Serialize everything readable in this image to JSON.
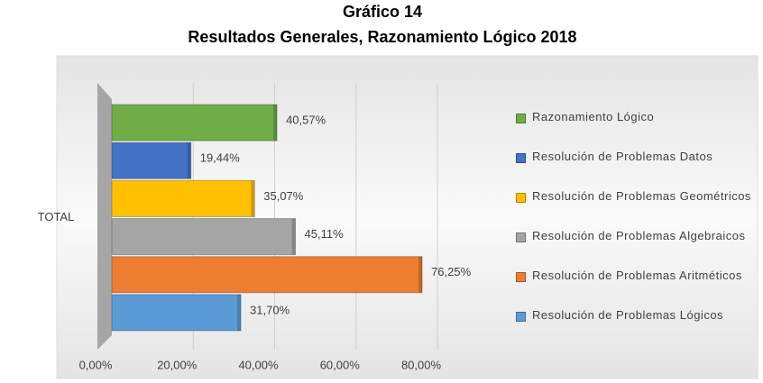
{
  "chart_data": {
    "type": "bar",
    "orientation": "horizontal",
    "title": "Gráfico 14",
    "subtitle": "Resultados Generales, Razonamiento Lógico 2018",
    "categories": [
      "TOTAL"
    ],
    "series": [
      {
        "name": "Razonamiento Lógico",
        "color": "#70ad47",
        "values": [
          40.57
        ],
        "value_labels": [
          "40,57%"
        ]
      },
      {
        "name": "Resolución de Problemas Datos",
        "color": "#4472c4",
        "values": [
          19.44
        ],
        "value_labels": [
          "19,44%"
        ]
      },
      {
        "name": "Resolución de Problemas Geométricos",
        "color": "#ffc000",
        "values": [
          35.07
        ],
        "value_labels": [
          "35,07%"
        ]
      },
      {
        "name": "Resolución de Problemas Algebraicos",
        "color": "#a5a5a5",
        "values": [
          45.11
        ],
        "value_labels": [
          "45,11%"
        ]
      },
      {
        "name": "Resolución de Problemas Aritméticos",
        "color": "#ed7d31",
        "values": [
          76.25
        ],
        "value_labels": [
          "76,25%"
        ]
      },
      {
        "name": "Resolución de Problemas Lógicos",
        "color": "#5b9bd5",
        "values": [
          31.7
        ],
        "value_labels": [
          "31,70%"
        ]
      }
    ],
    "xlim": [
      0,
      80
    ],
    "xticks": [
      {
        "value": 0,
        "label": "0,00%"
      },
      {
        "value": 20,
        "label": "20,00%"
      },
      {
        "value": 40,
        "label": "40,00%"
      },
      {
        "value": 60,
        "label": "60,00%"
      },
      {
        "value": 80,
        "label": "80,00%"
      }
    ],
    "grid": true,
    "legend": "right"
  }
}
